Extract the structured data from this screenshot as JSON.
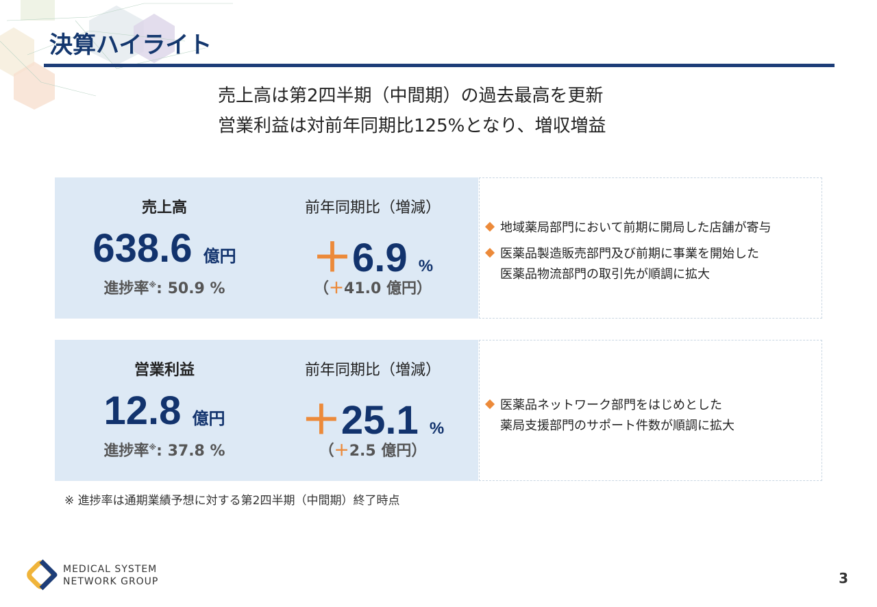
{
  "title": "決算ハイライト",
  "headline": [
    "売上高は第2四半期（中間期）の過去最高を更新",
    "営業利益は対前年同期比125%となり、増収増益"
  ],
  "cards": [
    {
      "label": "売上高",
      "value": "638.6",
      "unit": "億円",
      "progress_label": "進捗率",
      "progress_mark": "※",
      "progress_value": ": 50.9 %",
      "yoy_label": "前年同期比（増減）",
      "yoy_sign": "＋",
      "yoy_value": "6.9",
      "yoy_unit": "%",
      "diff_open": "（",
      "diff_sign": "＋",
      "diff_value": "41.0 億円",
      "diff_close": "）",
      "bullets": [
        [
          "地域薬局部門において前期に開局した店舗が寄与"
        ],
        [
          "医薬品製造販売部門及び前期に事業を開始した",
          "医薬品物流部門の取引先が順調に拡大"
        ]
      ]
    },
    {
      "label": "営業利益",
      "value": "12.8",
      "unit": "億円",
      "progress_label": "進捗率",
      "progress_mark": "※",
      "progress_value": ": 37.8 %",
      "yoy_label": "前年同期比（増減）",
      "yoy_sign": "＋",
      "yoy_value": "25.1",
      "yoy_unit": "%",
      "diff_open": "（",
      "diff_sign": "＋",
      "diff_value": "2.5 億円",
      "diff_close": "）",
      "bullets": [
        [
          "医薬品ネットワーク部門をはじめとした",
          "薬局支援部門のサポート件数が順調に拡大"
        ]
      ]
    }
  ],
  "note": "※ 進捗率は通期業績予想に対する第2四半期（中間期）終了時点",
  "logo": {
    "line1": "MEDICAL SYSTEM",
    "line2": "NETWORK GROUP"
  },
  "page_number": "3",
  "colors": {
    "navy": "#14376e",
    "orange": "#ec8a3a",
    "card_bg": "#dde9f5"
  }
}
